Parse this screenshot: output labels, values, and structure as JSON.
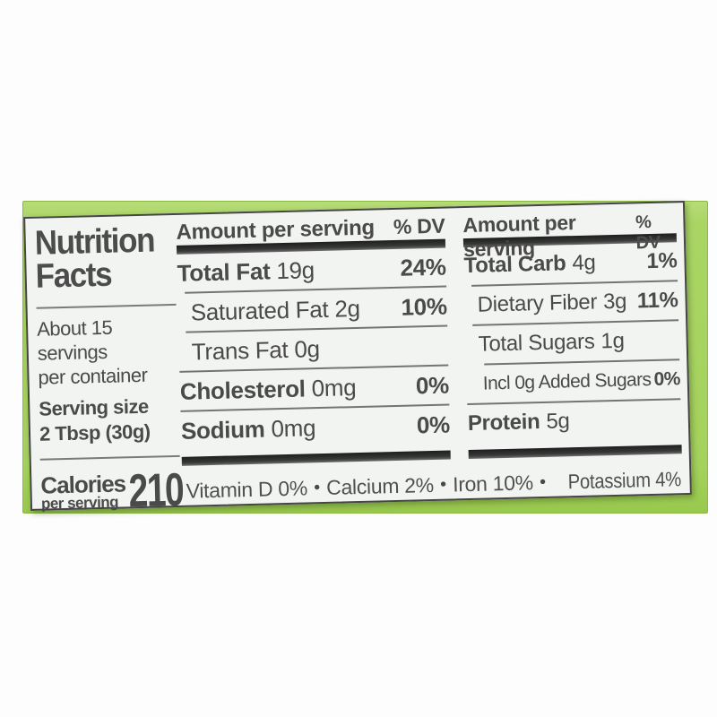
{
  "photo": {
    "background": "#ffffff",
    "package_color": "#a7d45f",
    "label_bg": "#f2f4f1",
    "text_color": "#4a4a4a",
    "bar_color": "#2f2f2f"
  },
  "label": {
    "title_line1": "Nutrition",
    "title_line2": "Facts",
    "servings_line1": "About 15 servings",
    "servings_line2": "per container",
    "serving_size_label": "Serving size",
    "serving_size_value": "2 Tbsp (30g)",
    "calories_label": "Calories",
    "calories_sublabel": "per serving",
    "calories_value": "210",
    "columns": [
      {
        "header": "Amount per serving",
        "header_dv": "% DV",
        "rows": [
          {
            "name": "Total Fat",
            "amount": "19g",
            "dv": "24%"
          },
          {
            "name": "Saturated Fat",
            "amount": "2g",
            "dv": "10%"
          },
          {
            "name": "Trans Fat",
            "amount": "0g",
            "dv": ""
          },
          {
            "name": "Cholesterol",
            "amount": "0mg",
            "dv": "0%"
          },
          {
            "name": "Sodium",
            "amount": "0mg",
            "dv": "0%"
          }
        ]
      },
      {
        "header": "Amount per serving",
        "header_dv": "% DV",
        "rows": [
          {
            "name": "Total Carb",
            "amount": "4g",
            "dv": "1%"
          },
          {
            "name": "Dietary Fiber",
            "amount": "3g",
            "dv": "11%"
          },
          {
            "name": "Total Sugars",
            "amount": "1g",
            "dv": ""
          },
          {
            "name": "Incl 0g Added Sugars",
            "amount": "",
            "dv": "0%"
          },
          {
            "name": "Protein",
            "amount": "5g",
            "dv": ""
          }
        ]
      }
    ],
    "micronutrients": [
      "Vitamin D 0%",
      "Calcium 2%",
      "Iron 10%",
      "Potassium 4%"
    ],
    "separator": "•"
  }
}
